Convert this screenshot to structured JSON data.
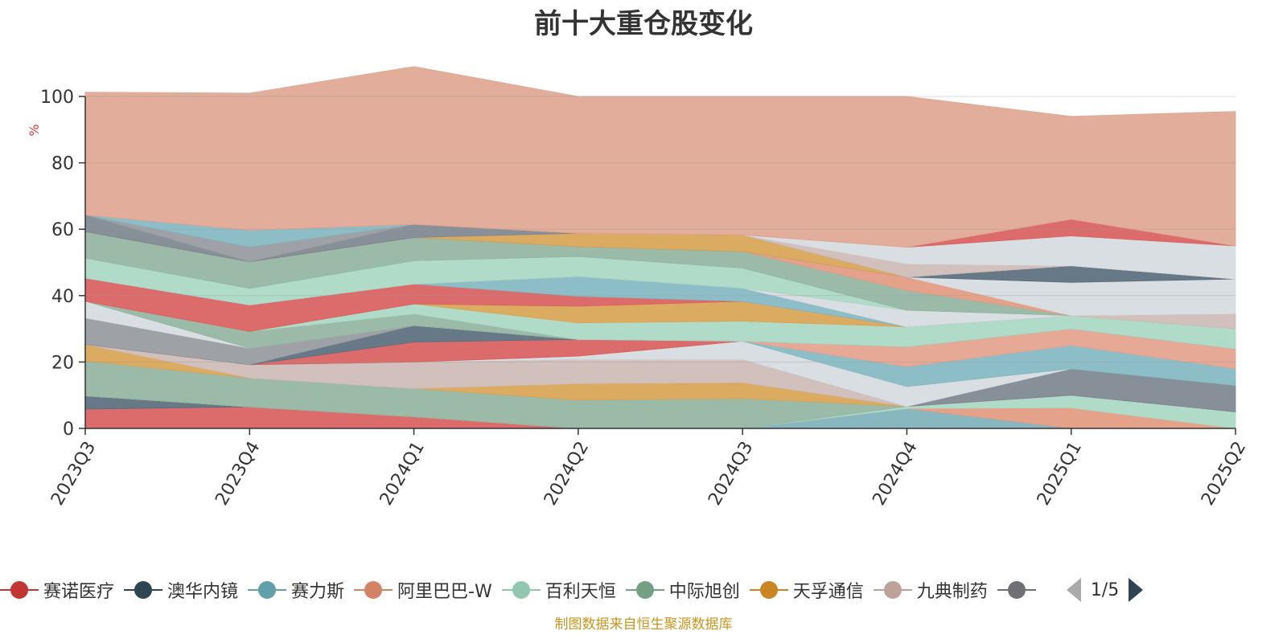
{
  "chart_data": {
    "type": "area",
    "stacked": true,
    "title": "前十大重仓股变化",
    "ylabel": "%",
    "ylim": [
      0,
      100
    ],
    "yticks": [
      0,
      20,
      40,
      60,
      80,
      100
    ],
    "grid": true,
    "legend_position": "bottom",
    "categories": [
      "2023Q3",
      "2023Q4",
      "2024Q1",
      "2024Q2",
      "2024Q3",
      "2024Q4",
      "2025Q1",
      "2025Q2"
    ],
    "series": [
      {
        "name": "赛诺医疗",
        "color": "#d9605f",
        "values": [
          5.8,
          6.5,
          3.5,
          0,
          0,
          0,
          0,
          0
        ]
      },
      {
        "name": "澳华内镜",
        "color": "#5a6e7d",
        "values": [
          4,
          0,
          0,
          0,
          0,
          0,
          0,
          0
        ]
      },
      {
        "name": "赛力斯",
        "color": "#7fb1bb",
        "values": [
          0,
          0,
          0,
          0,
          0,
          6,
          0,
          0
        ]
      },
      {
        "name": "阿里巴巴-W",
        "color": "#e39a80",
        "values": [
          0,
          0,
          0,
          0,
          0,
          0,
          6.2,
          0
        ]
      },
      {
        "name": "百利天恒",
        "color": "#a9d8c4",
        "values": [
          0,
          0,
          0,
          0,
          0,
          0.6,
          3.8,
          5
        ]
      },
      {
        "name": "中际旭创",
        "color": "#93b5a1",
        "values": [
          10.5,
          8.7,
          8.5,
          8.5,
          9,
          0,
          0,
          0
        ]
      },
      {
        "name": "天孚通信",
        "color": "#d8a455",
        "values": [
          5,
          0,
          0,
          5,
          4.8,
          0,
          0,
          0
        ]
      },
      {
        "name": "九典制药",
        "color": "#cebbb6",
        "values": [
          0,
          4,
          8,
          7.3,
          7,
          0,
          0,
          0
        ]
      },
      {
        "name": "",
        "color": "#7d8690",
        "values": [
          0,
          0,
          0,
          0,
          0,
          0,
          8,
          8
        ]
      },
      {
        "name": "",
        "color": "#d6dbe1",
        "values": [
          0,
          0,
          0,
          1,
          5.5,
          6,
          0,
          0
        ]
      },
      {
        "name": "",
        "color": "#83b9c3",
        "values": [
          0,
          0,
          0,
          0,
          0,
          6,
          7,
          5
        ]
      },
      {
        "name": "",
        "color": "#e4a28d",
        "values": [
          0,
          0,
          0,
          0,
          0,
          6,
          5,
          6
        ]
      },
      {
        "name": "",
        "color": "#d9605f",
        "values": [
          0,
          0,
          6,
          5,
          0,
          0,
          0,
          0
        ]
      },
      {
        "name": "",
        "color": "#5a6e7d",
        "values": [
          0,
          0,
          5,
          0,
          0,
          0,
          0,
          0
        ]
      },
      {
        "name": "",
        "color": "#969aa0",
        "values": [
          8,
          5,
          0,
          0,
          0,
          0,
          0,
          0
        ]
      },
      {
        "name": "",
        "color": "#d6dbe1",
        "values": [
          5,
          0,
          0,
          0,
          0,
          0,
          0,
          0
        ]
      },
      {
        "name": "",
        "color": "#93b5a1",
        "values": [
          0,
          5,
          3.5,
          0,
          0,
          0,
          0,
          0
        ]
      },
      {
        "name": "",
        "color": "#a9d8c4",
        "values": [
          0,
          0,
          3,
          5,
          6,
          6,
          4,
          6
        ]
      },
      {
        "name": "",
        "color": "#d8a455",
        "values": [
          0,
          0,
          0,
          5,
          6,
          0,
          0,
          0
        ]
      },
      {
        "name": "",
        "color": "#d9605f",
        "values": [
          7,
          8,
          6,
          3,
          0,
          0,
          0,
          0
        ]
      },
      {
        "name": "",
        "color": "#83b9c3",
        "values": [
          0,
          0,
          0,
          6,
          4,
          0,
          0,
          0
        ]
      },
      {
        "name": "",
        "color": "#d6dbe1",
        "values": [
          0,
          0,
          0,
          0,
          0,
          5,
          0,
          0
        ]
      },
      {
        "name": "",
        "color": "#cebbb6",
        "values": [
          0,
          0,
          0,
          0,
          0,
          0,
          0,
          4.5
        ]
      },
      {
        "name": "",
        "color": "#a9d8c4",
        "values": [
          6,
          5,
          7,
          6,
          6,
          0,
          0,
          0
        ]
      },
      {
        "name": "",
        "color": "#93b5a1",
        "values": [
          8,
          8,
          7,
          3,
          5,
          6,
          0,
          0
        ]
      },
      {
        "name": "",
        "color": "#e39a80",
        "values": [
          0,
          0,
          0,
          0,
          0,
          4,
          0,
          0
        ]
      },
      {
        "name": "",
        "color": "#d6dbe1",
        "values": [
          0,
          0,
          0,
          0,
          0,
          0,
          10,
          10.5
        ]
      },
      {
        "name": "",
        "color": "#5a6e7d",
        "values": [
          0,
          0,
          0,
          0,
          0,
          0,
          5,
          0
        ]
      },
      {
        "name": "",
        "color": "#d8a455",
        "values": [
          0,
          0,
          0,
          4,
          5,
          0,
          0,
          0
        ]
      },
      {
        "name": "",
        "color": "#7d8690",
        "values": [
          5,
          0,
          4,
          0,
          0,
          0,
          0,
          0
        ]
      },
      {
        "name": "",
        "color": "#969aa0",
        "values": [
          0,
          4.5,
          0,
          0,
          0,
          0,
          0,
          0
        ]
      },
      {
        "name": "",
        "color": "#83b9c3",
        "values": [
          0,
          5,
          0,
          0,
          0,
          0,
          0,
          0
        ]
      },
      {
        "name": "",
        "color": "#cebbb6",
        "values": [
          0,
          0,
          0,
          0,
          0,
          4,
          0,
          0
        ]
      },
      {
        "name": "",
        "color": "#d6dbe1",
        "values": [
          0,
          0,
          0,
          0,
          0,
          5,
          9,
          10
        ]
      },
      {
        "name": "",
        "color": "#d9605f",
        "values": [
          0,
          0,
          0,
          0,
          0,
          0,
          5,
          0
        ]
      },
      {
        "name": "",
        "color": "#e0a691",
        "values": [
          37,
          41.3,
          47.5,
          41.2,
          41.7,
          45.4,
          31,
          40.5
        ]
      }
    ]
  },
  "legend": {
    "items": [
      {
        "label": "赛诺医疗",
        "color": "#c23531"
      },
      {
        "label": "澳华内镜",
        "color": "#2f4554"
      },
      {
        "label": "赛力斯",
        "color": "#61a0a8"
      },
      {
        "label": "阿里巴巴-W",
        "color": "#d48265"
      },
      {
        "label": "百利天恒",
        "color": "#91c7ae"
      },
      {
        "label": "中际旭创",
        "color": "#749f83"
      },
      {
        "label": "天孚通信",
        "color": "#ca8622"
      },
      {
        "label": "九典制药",
        "color": "#bda29a"
      },
      {
        "label": "",
        "color": "#6e7074"
      }
    ],
    "page_text": "1/5"
  },
  "source_note": "制图数据来自恒生聚源数据库"
}
